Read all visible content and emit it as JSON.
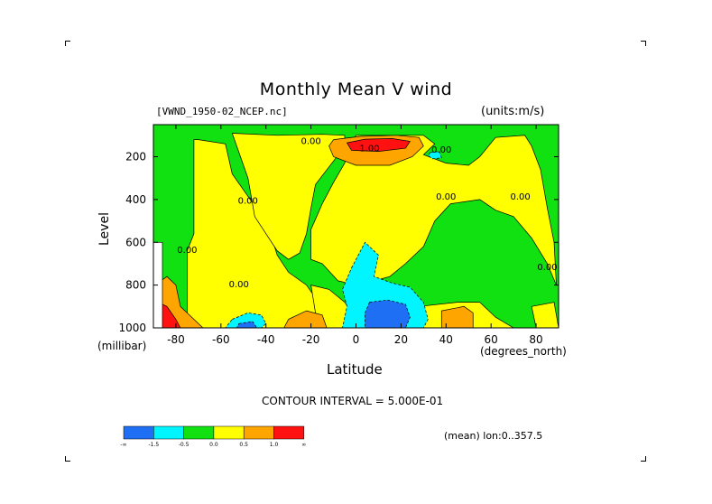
{
  "header": {
    "title": "Monthly Mean V wind",
    "dataset": "[VWND_1950-02_NCEP.nc]",
    "units": "(units:m/s)"
  },
  "footer": {
    "contour_interval": "CONTOUR INTERVAL = 5.000E-01",
    "mean_label": "(mean) lon:0..357.5"
  },
  "chart_data": {
    "type": "heatmap",
    "title": "Monthly Mean V wind",
    "xlabel": "Latitude",
    "xunit": "(degrees_north)",
    "ylabel": "Level",
    "yunit": "(millibar)",
    "xlim": [
      -90,
      90
    ],
    "ylim": [
      1000,
      50
    ],
    "y_inverted": true,
    "x_ticks": [
      -80,
      -60,
      -40,
      -20,
      0,
      20,
      40,
      60,
      80
    ],
    "y_ticks": [
      200,
      400,
      600,
      800,
      1000
    ],
    "contour_labels": [
      "0.00",
      "1.00"
    ],
    "colorbar": {
      "bins": [
        {
          "label": "<-1.5",
          "color": "#1f6ff5"
        },
        {
          "label": "-1.5 to -0.5",
          "color": "#00f5ff"
        },
        {
          "label": "-0.5 to 0.0",
          "color": "#11e011"
        },
        {
          "label": "0.0 to 0.5",
          "color": "#ffff00"
        },
        {
          "label": "0.5 to 1.0",
          "color": "#ffa500"
        },
        {
          "label": ">1.0",
          "color": "#ff1111"
        }
      ],
      "tick_labels": [
        "-∞",
        "-1.5",
        "-0.5",
        "0.0",
        "0.5",
        "1.0",
        "∞"
      ]
    },
    "regions": [
      {
        "level": "yellow",
        "points": [
          [
            -70,
            120
          ],
          [
            -58,
            140
          ],
          [
            -55,
            280
          ],
          [
            -45,
            430
          ],
          [
            -38,
            560
          ],
          [
            -35,
            660
          ],
          [
            -30,
            740
          ],
          [
            -22,
            800
          ],
          [
            -18,
            860
          ],
          [
            -17,
            940
          ],
          [
            -15,
            1000
          ],
          [
            -40,
            1000
          ],
          [
            -58,
            1000
          ],
          [
            -75,
            1000
          ],
          [
            -75,
            640
          ],
          [
            -72,
            560
          ],
          [
            -72,
            250
          ],
          [
            -72,
            120
          ]
        ]
      },
      {
        "level": "yellow",
        "points": [
          [
            -55,
            90
          ],
          [
            -35,
            100
          ],
          [
            -15,
            95
          ],
          [
            -5,
            100
          ],
          [
            -5,
            150
          ],
          [
            -10,
            220
          ],
          [
            -18,
            330
          ],
          [
            -20,
            440
          ],
          [
            -22,
            560
          ],
          [
            -25,
            650
          ],
          [
            -30,
            680
          ],
          [
            -35,
            640
          ],
          [
            -45,
            480
          ],
          [
            -48,
            300
          ],
          [
            -52,
            180
          ]
        ]
      },
      {
        "level": "yellow",
        "points": [
          [
            0,
            100
          ],
          [
            30,
            100
          ],
          [
            35,
            140
          ],
          [
            30,
            190
          ],
          [
            40,
            230
          ],
          [
            50,
            240
          ],
          [
            55,
            200
          ],
          [
            62,
            110
          ],
          [
            75,
            100
          ],
          [
            78,
            150
          ],
          [
            82,
            260
          ],
          [
            85,
            440
          ],
          [
            88,
            600
          ],
          [
            89,
            800
          ],
          [
            85,
            700
          ],
          [
            78,
            580
          ],
          [
            70,
            480
          ],
          [
            62,
            450
          ],
          [
            55,
            400
          ],
          [
            42,
            420
          ],
          [
            35,
            500
          ],
          [
            30,
            620
          ],
          [
            22,
            700
          ],
          [
            15,
            760
          ],
          [
            8,
            780
          ],
          [
            0,
            800
          ],
          [
            -8,
            780
          ],
          [
            -15,
            700
          ],
          [
            -20,
            680
          ],
          [
            -20,
            540
          ],
          [
            -15,
            420
          ],
          [
            -10,
            320
          ],
          [
            -5,
            230
          ],
          [
            -3,
            160
          ]
        ]
      },
      {
        "level": "yellow",
        "points": [
          [
            -20,
            800
          ],
          [
            -12,
            820
          ],
          [
            -5,
            880
          ],
          [
            0,
            960
          ],
          [
            2,
            1000
          ],
          [
            -15,
            1000
          ],
          [
            -18,
            930
          ]
        ]
      },
      {
        "level": "yellow",
        "points": [
          [
            28,
            900
          ],
          [
            45,
            880
          ],
          [
            55,
            880
          ],
          [
            62,
            950
          ],
          [
            70,
            1000
          ],
          [
            30,
            1000
          ]
        ]
      },
      {
        "level": "yellow",
        "points": [
          [
            78,
            900
          ],
          [
            88,
            880
          ],
          [
            90,
            1000
          ],
          [
            80,
            1000
          ]
        ]
      },
      {
        "level": "cyan",
        "points": [
          [
            -2,
            720
          ],
          [
            4,
            600
          ],
          [
            10,
            660
          ],
          [
            8,
            760
          ],
          [
            16,
            790
          ],
          [
            24,
            810
          ],
          [
            30,
            880
          ],
          [
            32,
            960
          ],
          [
            30,
            1000
          ],
          [
            -6,
            1000
          ],
          [
            -4,
            900
          ],
          [
            -6,
            820
          ]
        ]
      },
      {
        "level": "cyan",
        "points": [
          [
            -55,
            960
          ],
          [
            -48,
            930
          ],
          [
            -42,
            940
          ],
          [
            -40,
            980
          ],
          [
            -42,
            1000
          ],
          [
            -58,
            1000
          ]
        ]
      },
      {
        "level": "cyan",
        "points": [
          [
            33,
            180
          ],
          [
            37,
            175
          ],
          [
            38,
            205
          ],
          [
            34,
            210
          ],
          [
            32,
            195
          ]
        ]
      },
      {
        "level": "blue",
        "points": [
          [
            6,
            880
          ],
          [
            14,
            870
          ],
          [
            22,
            890
          ],
          [
            24,
            950
          ],
          [
            22,
            1000
          ],
          [
            4,
            1000
          ],
          [
            4,
            930
          ]
        ]
      },
      {
        "level": "blue",
        "points": [
          [
            -52,
            980
          ],
          [
            -46,
            970
          ],
          [
            -44,
            1000
          ],
          [
            -53,
            1000
          ]
        ]
      },
      {
        "level": "orange",
        "points": [
          [
            -10,
            120
          ],
          [
            2,
            105
          ],
          [
            18,
            100
          ],
          [
            28,
            110
          ],
          [
            30,
            150
          ],
          [
            25,
            200
          ],
          [
            15,
            240
          ],
          [
            0,
            240
          ],
          [
            -10,
            200
          ],
          [
            -12,
            150
          ]
        ]
      },
      {
        "level": "orange",
        "points": [
          [
            -30,
            960
          ],
          [
            -22,
            920
          ],
          [
            -15,
            940
          ],
          [
            -13,
            1000
          ],
          [
            -32,
            1000
          ]
        ]
      },
      {
        "level": "orange",
        "points": [
          [
            38,
            920
          ],
          [
            48,
            900
          ],
          [
            52,
            930
          ],
          [
            52,
            1000
          ],
          [
            38,
            1000
          ]
        ]
      },
      {
        "level": "orange",
        "points": [
          [
            -88,
            790
          ],
          [
            -84,
            760
          ],
          [
            -80,
            800
          ],
          [
            -78,
            900
          ],
          [
            -72,
            960
          ],
          [
            -68,
            1000
          ],
          [
            -88,
            1000
          ]
        ]
      },
      {
        "level": "red",
        "points": [
          [
            -4,
            135
          ],
          [
            4,
            118
          ],
          [
            16,
            115
          ],
          [
            24,
            128
          ],
          [
            22,
            160
          ],
          [
            10,
            175
          ],
          [
            -2,
            170
          ]
        ]
      },
      {
        "level": "red",
        "points": [
          [
            -88,
            880
          ],
          [
            -84,
            900
          ],
          [
            -80,
            960
          ],
          [
            -78,
            1000
          ],
          [
            -88,
            1000
          ]
        ]
      },
      {
        "level": "white",
        "points": [
          [
            -90,
            600
          ],
          [
            -86,
            600
          ],
          [
            -86,
            1000
          ],
          [
            -90,
            1000
          ]
        ]
      }
    ]
  }
}
